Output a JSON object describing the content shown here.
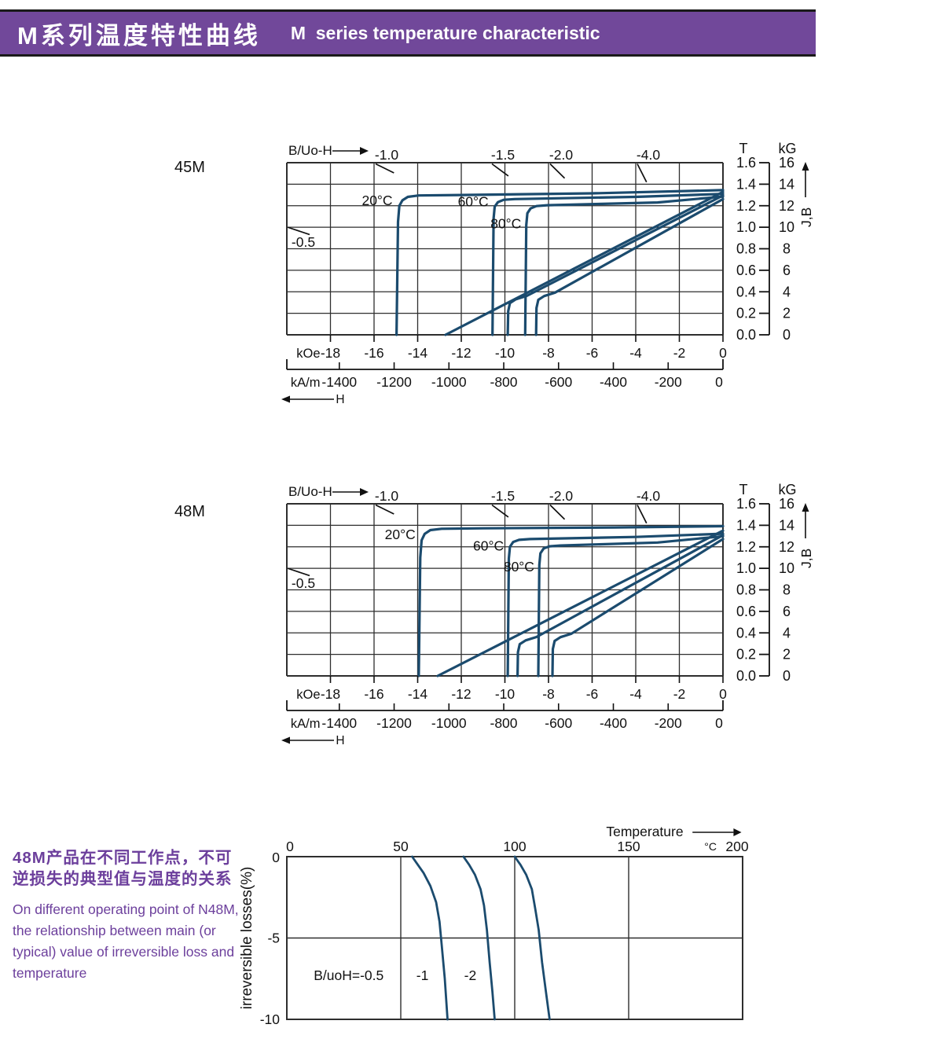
{
  "theme": {
    "header_bg": "#71489a",
    "header_text": "#ffffff",
    "note_color": "#6c3f9c",
    "curve_color": "#1b4b6e",
    "grid_color": "#2e2e2e",
    "text_color": "#111111"
  },
  "header": {
    "title_zh": "M系列温度特性曲线",
    "title_en": "M  series temperature characteristic"
  },
  "note": {
    "zh_lines": [
      "48M产品在不同工作点，不可",
      "逆损失的典型值与温度的关系"
    ],
    "en_lines": [
      "On different operating point of N48M,",
      "the relationship between main (or",
      "typical) value of irreversible loss and",
      "temperature"
    ]
  },
  "chart_data": [
    {
      "id": "bh_45m",
      "type": "line",
      "grade_label": "45M",
      "top_left_label": "B/Uo-H",
      "x_axis": {
        "unit_primary": "kOe",
        "ticks_primary": [
          -18,
          -16,
          -14,
          -12,
          -10,
          -8,
          -6,
          -4,
          -2,
          0
        ],
        "unit_secondary": "kA/m",
        "ticks_secondary": [
          -1400,
          -1200,
          -1000,
          -800,
          -600,
          -400,
          -200,
          0
        ],
        "range_koe": [
          -20,
          0
        ],
        "arrow_label": "H"
      },
      "y_axis": {
        "unit_left": "T",
        "ticks_left": [
          "1.6",
          "1.4",
          "1.2",
          "1.0",
          "0.8",
          "0.6",
          "0.4",
          "0.2",
          "0.0"
        ],
        "unit_right": "kG",
        "ticks_right": [
          16,
          14,
          12,
          10,
          8,
          6,
          4,
          2,
          0
        ],
        "range_kg": [
          0,
          16
        ],
        "arrow_label": "J,B"
      },
      "load_lines": [
        {
          "label": "-0.5",
          "slope": 0.5,
          "edge": "left"
        },
        {
          "label": "-1.0",
          "slope": 1.0,
          "edge": "top"
        },
        {
          "label": "-1.5",
          "slope": 1.5,
          "edge": "top"
        },
        {
          "label": "-2.0",
          "slope": 2.0,
          "edge": "top"
        },
        {
          "label": "-4.0",
          "slope": 4.0,
          "edge": "top"
        }
      ],
      "series": [
        {
          "name": "20C intrinsic J curve",
          "label": "20°C",
          "label_pos": [
            -15.15,
            12.05
          ],
          "points": [
            [
              -14.97,
              0
            ],
            [
              -14.9,
              10.5
            ],
            [
              -14.84,
              12.0
            ],
            [
              -14.7,
              12.5
            ],
            [
              -14.45,
              12.82
            ],
            [
              -13.95,
              12.95
            ],
            [
              -12.0,
              13.0
            ],
            [
              -6.0,
              13.15
            ],
            [
              0,
              13.45
            ]
          ]
        },
        {
          "name": "60C intrinsic J curve",
          "label": "60°C",
          "label_pos": [
            -10.75,
            11.95
          ],
          "points": [
            [
              -10.57,
              0
            ],
            [
              -10.52,
              10.8
            ],
            [
              -10.47,
              11.9
            ],
            [
              -10.32,
              12.33
            ],
            [
              -10.05,
              12.55
            ],
            [
              -9.55,
              12.62
            ],
            [
              -4.0,
              12.82
            ],
            [
              0,
              13.1
            ]
          ]
        },
        {
          "name": "80C intrinsic J curve",
          "label": "80°C",
          "label_pos": [
            -9.25,
            9.9
          ],
          "points": [
            [
              -9.07,
              0
            ],
            [
              -9.02,
              10.2
            ],
            [
              -8.97,
              11.3
            ],
            [
              -8.82,
              11.75
            ],
            [
              -8.55,
              11.97
            ],
            [
              -8.05,
              12.05
            ],
            [
              -3.0,
              12.3
            ],
            [
              0,
              12.85
            ]
          ]
        },
        {
          "name": "20C normal B curve",
          "points": [
            [
              -12.72,
              0
            ],
            [
              0,
              13.28
            ]
          ]
        },
        {
          "name": "60C normal B curve",
          "points": [
            [
              -9.87,
              0
            ],
            [
              -9.85,
              2.2
            ],
            [
              -9.77,
              2.95
            ],
            [
              -9.5,
              3.3
            ],
            [
              -9.0,
              3.62
            ],
            [
              0,
              12.95
            ]
          ]
        },
        {
          "name": "80C normal B curve",
          "points": [
            [
              -8.57,
              0
            ],
            [
              -8.55,
              2.5
            ],
            [
              -8.47,
              3.25
            ],
            [
              -8.2,
              3.6
            ],
            [
              -7.7,
              3.92
            ],
            [
              0,
              12.62
            ]
          ]
        }
      ]
    },
    {
      "id": "bh_48m",
      "type": "line",
      "grade_label": "48M",
      "top_left_label": "B/Uo-H",
      "x_axis": {
        "unit_primary": "kOe",
        "ticks_primary": [
          -18,
          -16,
          -14,
          -12,
          -10,
          -8,
          -6,
          -4,
          -2,
          0
        ],
        "unit_secondary": "kA/m",
        "ticks_secondary": [
          -1400,
          -1200,
          -1000,
          -800,
          -600,
          -400,
          -200,
          0
        ],
        "range_koe": [
          -20,
          0
        ],
        "arrow_label": "H"
      },
      "y_axis": {
        "unit_left": "T",
        "ticks_left": [
          "1.6",
          "1.4",
          "1.2",
          "1.0",
          "0.8",
          "0.6",
          "0.4",
          "0.2",
          "0.0"
        ],
        "unit_right": "kG",
        "ticks_right": [
          16,
          14,
          12,
          10,
          8,
          6,
          4,
          2,
          0
        ],
        "range_kg": [
          0,
          16
        ],
        "arrow_label": "J,B"
      },
      "load_lines": [
        {
          "label": "-0.5",
          "slope": 0.5,
          "edge": "left"
        },
        {
          "label": "-1.0",
          "slope": 1.0,
          "edge": "top"
        },
        {
          "label": "-1.5",
          "slope": 1.5,
          "edge": "top"
        },
        {
          "label": "-2.0",
          "slope": 2.0,
          "edge": "top"
        },
        {
          "label": "-4.0",
          "slope": 4.0,
          "edge": "top"
        }
      ],
      "series": [
        {
          "name": "20C intrinsic J curve",
          "label": "20°C",
          "label_pos": [
            -14.1,
            12.7
          ],
          "points": [
            [
              -13.95,
              0
            ],
            [
              -13.88,
              11.0
            ],
            [
              -13.82,
              12.6
            ],
            [
              -13.68,
              13.2
            ],
            [
              -13.42,
              13.55
            ],
            [
              -12.9,
              13.68
            ],
            [
              -11.0,
              13.72
            ],
            [
              -5.0,
              13.8
            ],
            [
              0,
              13.92
            ]
          ]
        },
        {
          "name": "60C intrinsic J curve",
          "label": "60°C",
          "label_pos": [
            -10.05,
            11.65
          ],
          "points": [
            [
              -9.87,
              0
            ],
            [
              -9.82,
              10.9
            ],
            [
              -9.77,
              12.0
            ],
            [
              -9.62,
              12.45
            ],
            [
              -9.35,
              12.65
            ],
            [
              -8.85,
              12.72
            ],
            [
              -4.0,
              12.92
            ],
            [
              0,
              13.22
            ]
          ]
        },
        {
          "name": "80C intrinsic J curve",
          "label": "80°C",
          "label_pos": [
            -8.65,
            9.7
          ],
          "points": [
            [
              -8.47,
              0
            ],
            [
              -8.42,
              10.3
            ],
            [
              -8.37,
              11.4
            ],
            [
              -8.22,
              11.85
            ],
            [
              -7.95,
              12.05
            ],
            [
              -7.45,
              12.12
            ],
            [
              -3.0,
              12.4
            ],
            [
              0,
              12.98
            ]
          ]
        },
        {
          "name": "20C normal B curve",
          "points": [
            [
              -13.08,
              0
            ],
            [
              0,
              13.5
            ]
          ]
        },
        {
          "name": "60C normal B curve",
          "points": [
            [
              -9.42,
              0
            ],
            [
              -9.4,
              2.2
            ],
            [
              -9.32,
              2.95
            ],
            [
              -9.05,
              3.3
            ],
            [
              -8.55,
              3.62
            ],
            [
              0,
              13.08
            ]
          ]
        },
        {
          "name": "80C normal B curve",
          "points": [
            [
              -7.82,
              0
            ],
            [
              -7.8,
              2.5
            ],
            [
              -7.72,
              3.25
            ],
            [
              -7.45,
              3.6
            ],
            [
              -6.95,
              3.92
            ],
            [
              0,
              12.72
            ]
          ]
        }
      ]
    },
    {
      "id": "irreversible_loss",
      "type": "line",
      "title": "Temperature",
      "x_axis": {
        "ticks": [
          0,
          50,
          100,
          150,
          200
        ],
        "unit": "°C",
        "range": [
          0,
          200
        ]
      },
      "y_axis": {
        "ticks": [
          "0",
          "-5",
          "-10"
        ],
        "label": "irreversible  losses(%)",
        "range": [
          -10,
          0
        ]
      },
      "series": [
        {
          "name": "B/uoH=-0.5",
          "label": "B/uoH=-0.5",
          "label_pos": [
            42.5,
            -7.3
          ],
          "label_anchor": "end",
          "points": [
            [
              55,
              0
            ],
            [
              57,
              -0.4
            ],
            [
              60,
              -1.0
            ],
            [
              63,
              -1.8
            ],
            [
              65.5,
              -2.8
            ],
            [
              67,
              -4.0
            ],
            [
              68,
              -5.5
            ],
            [
              69.3,
              -7.5
            ],
            [
              70.5,
              -10
            ]
          ]
        },
        {
          "name": "B/uoH=-1",
          "label": "-1",
          "label_pos": [
            59.5,
            -7.3
          ],
          "label_anchor": "middle",
          "points": [
            [
              77.5,
              0
            ],
            [
              80,
              -0.5
            ],
            [
              82.5,
              -1.1
            ],
            [
              85,
              -2.0
            ],
            [
              86.5,
              -3.0
            ],
            [
              87.8,
              -4.5
            ],
            [
              89,
              -6.5
            ],
            [
              90.2,
              -8.3
            ],
            [
              91.2,
              -10
            ]
          ]
        },
        {
          "name": "B/uoH=-2",
          "label": "-2",
          "label_pos": [
            80.5,
            -7.3
          ],
          "label_anchor": "middle",
          "points": [
            [
              100,
              0
            ],
            [
              102.5,
              -0.5
            ],
            [
              105,
              -1.1
            ],
            [
              107.5,
              -2.0
            ],
            [
              109,
              -3.2
            ],
            [
              110.5,
              -4.5
            ],
            [
              112,
              -6.5
            ],
            [
              113.7,
              -8.3
            ],
            [
              115.3,
              -10
            ]
          ]
        }
      ]
    }
  ]
}
